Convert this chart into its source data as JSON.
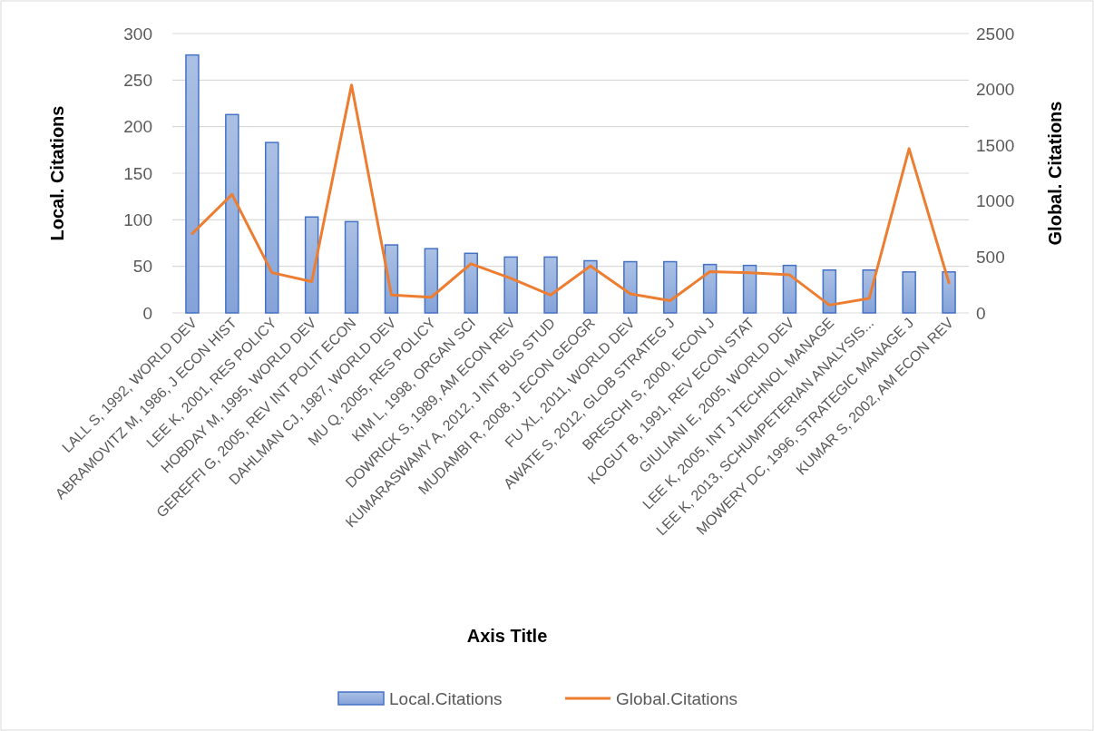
{
  "chart_data": {
    "type": "bar",
    "xlabel": "Axis Title",
    "ylabel": "Local. Citations",
    "y2label": "Global. Citations",
    "categories": [
      "LALL S, 1992, WORLD DEV",
      "ABRAMOVITZ M, 1986, J ECON HIST",
      "LEE K, 2001, RES POLICY",
      "HOBDAY M, 1995, WORLD DEV",
      "GEREFFI G, 2005, REV INT POLIT ECON",
      "DAHLMAN CJ, 1987, WORLD DEV",
      "MU Q, 2005, RES POLICY",
      "KIM L, 1998, ORGAN SCI",
      "DOWRICK S, 1989, AM ECON REV",
      "KUMARASWAMY A, 2012, J INT BUS STUD",
      "MUDAMBI R, 2008, J ECON GEOGR",
      "FU XL, 2011, WORLD DEV",
      "AWATE S, 2012, GLOB STRATEG J",
      "BRESCHI S, 2000, ECON J",
      "KOGUT B, 1991, REV ECON STAT",
      "GIULIANI E, 2005, WORLD DEV",
      "LEE K, 2005, INT J TECHNOL MANAGE",
      "LEE K, 2013, SCHUMPETERIAN ANALYSIS...",
      "MOWERY DC, 1996, STRATEGIC MANAGE J",
      "KUMAR S, 2002, AM ECON REV"
    ],
    "series": [
      {
        "name": "Local.Citations",
        "color": "#4472c4",
        "values": [
          277,
          213,
          183,
          103,
          98,
          73,
          69,
          64,
          60,
          60,
          56,
          55,
          55,
          52,
          51,
          51,
          46,
          46,
          44,
          44
        ]
      },
      {
        "name": "Global.Citations",
        "type": "line",
        "axis": "y2",
        "color": "#ed7d31",
        "values": [
          710,
          1060,
          360,
          280,
          2040,
          160,
          140,
          440,
          310,
          160,
          420,
          170,
          110,
          370,
          360,
          340,
          70,
          130,
          1470,
          270
        ]
      }
    ],
    "ylim": [
      0,
      300
    ],
    "yticks": [
      0,
      50,
      100,
      150,
      200,
      250,
      300
    ],
    "y2lim": [
      0,
      2500
    ],
    "y2ticks": [
      0,
      500,
      1000,
      1500,
      2000,
      2500
    ],
    "grid": "y",
    "legend": "bottom",
    "marker": "none",
    "line_style": "solid"
  }
}
